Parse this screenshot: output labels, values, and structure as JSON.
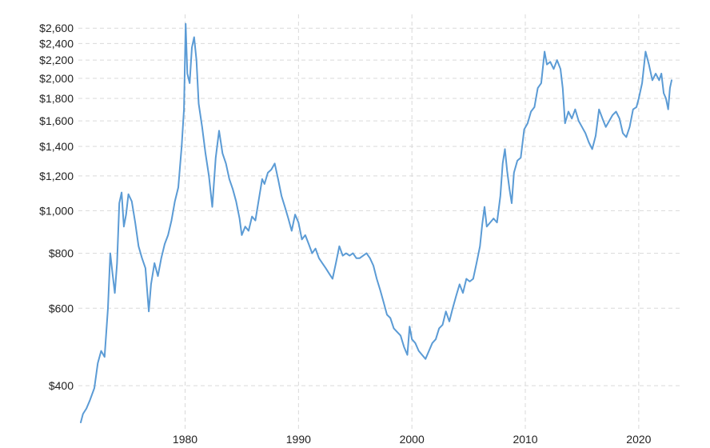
{
  "chart_data": {
    "type": "line",
    "title": "",
    "xlabel": "",
    "ylabel": "",
    "y_scale": "log",
    "grid": true,
    "legend": "none",
    "xlim": [
      1970.8,
      2022.9
    ],
    "ylim": [
      330,
      2680
    ],
    "y_ticks": [
      {
        "value": 400,
        "label": "$400"
      },
      {
        "value": 600,
        "label": "$600"
      },
      {
        "value": 800,
        "label": "$800"
      },
      {
        "value": 1000,
        "label": "$1,000"
      },
      {
        "value": 1200,
        "label": "$1,200"
      },
      {
        "value": 1400,
        "label": "$1,400"
      },
      {
        "value": 1600,
        "label": "$1,600"
      },
      {
        "value": 1800,
        "label": "$1,800"
      },
      {
        "value": 2000,
        "label": "$2,000"
      },
      {
        "value": 2200,
        "label": "$2,200"
      },
      {
        "value": 2400,
        "label": "$2,400"
      },
      {
        "value": 2600,
        "label": "$2,600"
      }
    ],
    "x_ticks": [
      {
        "value": 1980,
        "label": "1980"
      },
      {
        "value": 1990,
        "label": "1990"
      },
      {
        "value": 2000,
        "label": "2000"
      },
      {
        "value": 2010,
        "label": "2010"
      },
      {
        "value": 2020,
        "label": "2020"
      }
    ],
    "series": [
      {
        "color": "#5b9bd5",
        "points": [
          [
            1970.8,
            330
          ],
          [
            1971.0,
            345
          ],
          [
            1971.3,
            355
          ],
          [
            1971.6,
            370
          ],
          [
            1972.0,
            395
          ],
          [
            1972.3,
            450
          ],
          [
            1972.6,
            480
          ],
          [
            1972.9,
            465
          ],
          [
            1973.2,
            600
          ],
          [
            1973.4,
            800
          ],
          [
            1973.6,
            720
          ],
          [
            1973.8,
            650
          ],
          [
            1974.0,
            760
          ],
          [
            1974.2,
            1040
          ],
          [
            1974.4,
            1100
          ],
          [
            1974.6,
            920
          ],
          [
            1974.8,
            980
          ],
          [
            1975.0,
            1090
          ],
          [
            1975.3,
            1050
          ],
          [
            1975.6,
            940
          ],
          [
            1975.9,
            830
          ],
          [
            1976.2,
            780
          ],
          [
            1976.5,
            740
          ],
          [
            1976.8,
            590
          ],
          [
            1977.0,
            680
          ],
          [
            1977.3,
            760
          ],
          [
            1977.6,
            710
          ],
          [
            1977.9,
            780
          ],
          [
            1978.2,
            840
          ],
          [
            1978.5,
            880
          ],
          [
            1978.8,
            950
          ],
          [
            1979.1,
            1050
          ],
          [
            1979.4,
            1130
          ],
          [
            1979.7,
            1400
          ],
          [
            1979.9,
            1700
          ],
          [
            1980.05,
            2660
          ],
          [
            1980.2,
            2050
          ],
          [
            1980.4,
            1950
          ],
          [
            1980.6,
            2350
          ],
          [
            1980.8,
            2480
          ],
          [
            1981.0,
            2200
          ],
          [
            1981.2,
            1750
          ],
          [
            1981.5,
            1550
          ],
          [
            1981.8,
            1350
          ],
          [
            1982.1,
            1200
          ],
          [
            1982.4,
            1020
          ],
          [
            1982.7,
            1320
          ],
          [
            1983.0,
            1520
          ],
          [
            1983.3,
            1350
          ],
          [
            1983.6,
            1280
          ],
          [
            1983.9,
            1180
          ],
          [
            1984.2,
            1120
          ],
          [
            1984.5,
            1050
          ],
          [
            1984.8,
            960
          ],
          [
            1985.0,
            880
          ],
          [
            1985.3,
            920
          ],
          [
            1985.6,
            900
          ],
          [
            1985.9,
            970
          ],
          [
            1986.2,
            950
          ],
          [
            1986.5,
            1060
          ],
          [
            1986.8,
            1180
          ],
          [
            1987.0,
            1150
          ],
          [
            1987.3,
            1220
          ],
          [
            1987.6,
            1240
          ],
          [
            1987.9,
            1280
          ],
          [
            1988.2,
            1180
          ],
          [
            1988.5,
            1080
          ],
          [
            1988.8,
            1020
          ],
          [
            1989.1,
            960
          ],
          [
            1989.4,
            900
          ],
          [
            1989.7,
            980
          ],
          [
            1990.0,
            940
          ],
          [
            1990.3,
            860
          ],
          [
            1990.6,
            880
          ],
          [
            1990.9,
            840
          ],
          [
            1991.2,
            800
          ],
          [
            1991.5,
            820
          ],
          [
            1991.8,
            780
          ],
          [
            1992.1,
            760
          ],
          [
            1992.4,
            740
          ],
          [
            1992.7,
            720
          ],
          [
            1993.0,
            700
          ],
          [
            1993.3,
            760
          ],
          [
            1993.6,
            830
          ],
          [
            1993.9,
            790
          ],
          [
            1994.2,
            800
          ],
          [
            1994.5,
            790
          ],
          [
            1994.8,
            800
          ],
          [
            1995.1,
            780
          ],
          [
            1995.4,
            780
          ],
          [
            1995.7,
            790
          ],
          [
            1996.0,
            800
          ],
          [
            1996.3,
            780
          ],
          [
            1996.6,
            750
          ],
          [
            1996.9,
            700
          ],
          [
            1997.2,
            660
          ],
          [
            1997.5,
            620
          ],
          [
            1997.8,
            580
          ],
          [
            1998.1,
            570
          ],
          [
            1998.4,
            540
          ],
          [
            1998.7,
            530
          ],
          [
            1999.0,
            520
          ],
          [
            1999.3,
            490
          ],
          [
            1999.6,
            470
          ],
          [
            1999.8,
            545
          ],
          [
            2000.0,
            510
          ],
          [
            2000.3,
            500
          ],
          [
            2000.6,
            480
          ],
          [
            2000.9,
            470
          ],
          [
            2001.2,
            460
          ],
          [
            2001.5,
            480
          ],
          [
            2001.8,
            500
          ],
          [
            2002.1,
            510
          ],
          [
            2002.4,
            540
          ],
          [
            2002.7,
            550
          ],
          [
            2003.0,
            590
          ],
          [
            2003.3,
            560
          ],
          [
            2003.6,
            600
          ],
          [
            2003.9,
            640
          ],
          [
            2004.2,
            680
          ],
          [
            2004.5,
            650
          ],
          [
            2004.8,
            700
          ],
          [
            2005.1,
            690
          ],
          [
            2005.4,
            700
          ],
          [
            2005.7,
            760
          ],
          [
            2006.0,
            830
          ],
          [
            2006.2,
            930
          ],
          [
            2006.4,
            1020
          ],
          [
            2006.6,
            920
          ],
          [
            2006.9,
            940
          ],
          [
            2007.2,
            960
          ],
          [
            2007.5,
            940
          ],
          [
            2007.8,
            1080
          ],
          [
            2008.0,
            1280
          ],
          [
            2008.2,
            1380
          ],
          [
            2008.4,
            1230
          ],
          [
            2008.6,
            1120
          ],
          [
            2008.8,
            1040
          ],
          [
            2009.0,
            1220
          ],
          [
            2009.3,
            1300
          ],
          [
            2009.6,
            1320
          ],
          [
            2009.9,
            1530
          ],
          [
            2010.2,
            1580
          ],
          [
            2010.5,
            1680
          ],
          [
            2010.8,
            1720
          ],
          [
            2011.1,
            1900
          ],
          [
            2011.4,
            1950
          ],
          [
            2011.7,
            2300
          ],
          [
            2011.9,
            2150
          ],
          [
            2012.2,
            2180
          ],
          [
            2012.5,
            2100
          ],
          [
            2012.8,
            2200
          ],
          [
            2013.1,
            2100
          ],
          [
            2013.3,
            1900
          ],
          [
            2013.5,
            1580
          ],
          [
            2013.8,
            1680
          ],
          [
            2014.1,
            1620
          ],
          [
            2014.4,
            1700
          ],
          [
            2014.7,
            1600
          ],
          [
            2015.0,
            1550
          ],
          [
            2015.3,
            1500
          ],
          [
            2015.6,
            1430
          ],
          [
            2015.9,
            1380
          ],
          [
            2016.2,
            1480
          ],
          [
            2016.5,
            1700
          ],
          [
            2016.8,
            1620
          ],
          [
            2017.1,
            1550
          ],
          [
            2017.4,
            1600
          ],
          [
            2017.7,
            1650
          ],
          [
            2018.0,
            1680
          ],
          [
            2018.3,
            1620
          ],
          [
            2018.6,
            1500
          ],
          [
            2018.9,
            1470
          ],
          [
            2019.2,
            1550
          ],
          [
            2019.5,
            1700
          ],
          [
            2019.8,
            1720
          ],
          [
            2020.0,
            1800
          ],
          [
            2020.3,
            1950
          ],
          [
            2020.6,
            2300
          ],
          [
            2020.9,
            2150
          ],
          [
            2021.2,
            1980
          ],
          [
            2021.5,
            2050
          ],
          [
            2021.8,
            1980
          ],
          [
            2022.0,
            2050
          ],
          [
            2022.2,
            1850
          ],
          [
            2022.4,
            1800
          ],
          [
            2022.6,
            1700
          ],
          [
            2022.75,
            1900
          ],
          [
            2022.9,
            1980
          ]
        ]
      }
    ]
  }
}
